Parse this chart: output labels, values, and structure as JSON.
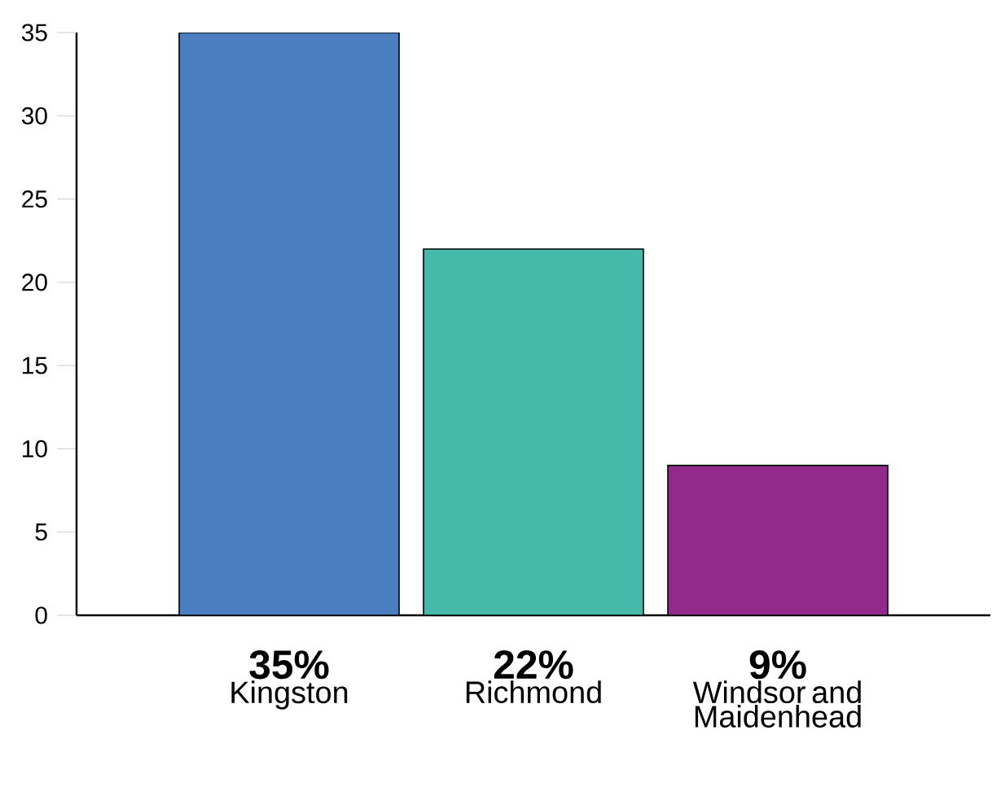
{
  "chart_data": {
    "type": "bar",
    "categories": [
      "Kingston",
      "Richmond",
      "Windsor and Maidenhead"
    ],
    "values": [
      35,
      22,
      9
    ],
    "value_labels": [
      "35%",
      "22%",
      "9%"
    ],
    "colors": [
      "#4a7ec1",
      "#45b9aa",
      "#912a8b"
    ],
    "ylim": [
      0,
      35
    ],
    "yticks": [
      0,
      5,
      10,
      15,
      20,
      25,
      30,
      35
    ]
  }
}
